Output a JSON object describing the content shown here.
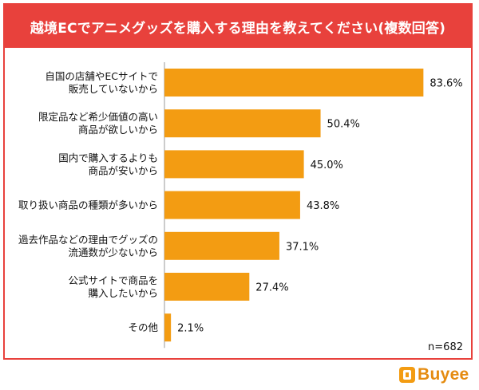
{
  "chart_data": {
    "type": "bar",
    "orientation": "horizontal",
    "title": "越境ECでアニメグッズを購入する理由を教えてください(複数回答)",
    "categories": [
      [
        "自国の店舗やECサイトで",
        "販売していないから"
      ],
      [
        "限定品など希少価値の高い",
        "商品が欲しいから"
      ],
      [
        "国内で購入するよりも",
        "商品が安いから"
      ],
      [
        "取り扱い商品の種類が多いから"
      ],
      [
        "過去作品などの理由でグッズの",
        "流通数が少ないから"
      ],
      [
        "公式サイトで商品を",
        "購入したいから"
      ],
      [
        "その他"
      ]
    ],
    "values": [
      83.6,
      50.4,
      45.0,
      43.8,
      37.1,
      27.4,
      2.1
    ],
    "value_labels": [
      "83.6%",
      "50.4%",
      "45.0%",
      "43.8%",
      "37.1%",
      "27.4%",
      "2.1%"
    ],
    "xlim": [
      0,
      100
    ],
    "unit": "%",
    "bar_color": "#f39c12",
    "sample_note": "n=682"
  },
  "brand": {
    "name": "Buyee",
    "accent_color": "#e8413c"
  }
}
